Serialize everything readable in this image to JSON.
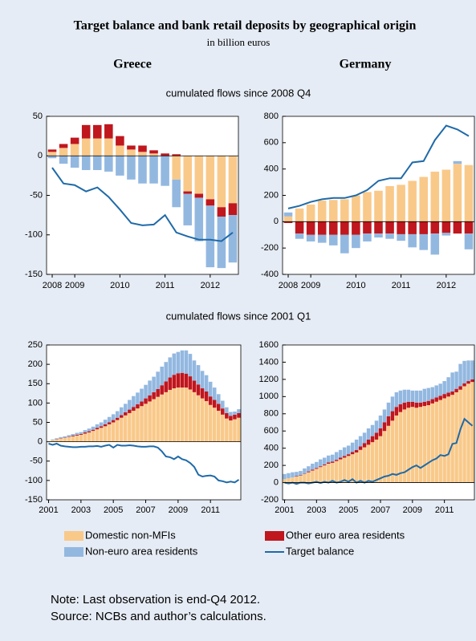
{
  "title": "Target balance and bank retail deposits by geographical origin",
  "subtitle": "in billion euros",
  "columns": [
    "Greece",
    "Germany"
  ],
  "sections": [
    "cumulated flows since 2008 Q4",
    "cumulated flows since 2001 Q1"
  ],
  "legend": [
    {
      "name": "Domestic non-MFIs",
      "color": "#f9c98a",
      "type": "bar"
    },
    {
      "name": "Other euro area residents",
      "color": "#c0161e",
      "type": "bar"
    },
    {
      "name": "Non-euro area residents",
      "color": "#93b8e0",
      "type": "bar"
    },
    {
      "name": "Target balance",
      "color": "#1f6aa8",
      "type": "line"
    }
  ],
  "notes": [
    "Note: Last observation is end-Q4 2012.",
    "Source: NCBs and author’s calculations."
  ],
  "chart_data": [
    {
      "type": "bar",
      "ylim": [
        -150,
        50
      ],
      "yticks": [
        -150,
        -100,
        -50,
        0,
        50
      ],
      "categories": [
        "2008",
        null,
        "2009",
        null,
        null,
        null,
        "2010",
        null,
        null,
        null,
        "2011",
        null,
        null,
        null,
        "2012",
        null,
        null
      ],
      "series": [
        {
          "values": [
            5,
            10,
            15,
            22,
            22,
            22,
            13,
            8,
            5,
            3,
            0,
            -30,
            -45,
            -48,
            -55,
            -65,
            -60
          ]
        },
        {
          "values": [
            3,
            5,
            8,
            17,
            17,
            18,
            12,
            5,
            8,
            4,
            3,
            2,
            -3,
            -5,
            -8,
            -12,
            -15
          ]
        },
        {
          "values": [
            -3,
            -10,
            -15,
            -18,
            -18,
            -20,
            -25,
            -30,
            -35,
            -35,
            -38,
            -35,
            -40,
            -55,
            -78,
            -65,
            -60
          ]
        },
        {
          "values": [
            -15,
            -35,
            -37,
            -45,
            -40,
            -52,
            -68,
            -85,
            -88,
            -87,
            -75,
            -97,
            -102,
            -106,
            -106,
            -108,
            -97
          ]
        }
      ]
    },
    {
      "type": "bar",
      "ylim": [
        -400,
        800
      ],
      "yticks": [
        -400,
        -200,
        0,
        200,
        400,
        600,
        800
      ],
      "categories": [
        "2008",
        null,
        "2009",
        null,
        null,
        null,
        "2010",
        null,
        null,
        null,
        "2011",
        null,
        null,
        null,
        "2012",
        null,
        null
      ],
      "series": [
        {
          "values": [
            40,
            100,
            130,
            160,
            165,
            170,
            200,
            225,
            235,
            270,
            280,
            310,
            340,
            380,
            395,
            440,
            430
          ]
        },
        {
          "values": [
            -10,
            -90,
            -100,
            -100,
            -100,
            -100,
            -100,
            -90,
            -90,
            -90,
            -95,
            -95,
            -95,
            -90,
            -85,
            -90,
            -90
          ]
        },
        {
          "values": [
            30,
            -40,
            -50,
            -60,
            -80,
            -140,
            -100,
            -60,
            -30,
            -40,
            -50,
            -100,
            -120,
            -160,
            -20,
            20,
            -120
          ]
        },
        {
          "values": [
            100,
            120,
            150,
            170,
            180,
            180,
            200,
            240,
            310,
            330,
            330,
            450,
            460,
            620,
            730,
            700,
            650
          ]
        }
      ]
    },
    {
      "type": "bar",
      "ylim": [
        -150,
        250
      ],
      "yticks": [
        -150,
        -100,
        -50,
        0,
        50,
        100,
        150,
        200,
        250
      ],
      "categories": [
        "2001",
        null,
        null,
        null,
        null,
        null,
        null,
        null,
        "2003",
        null,
        null,
        null,
        null,
        null,
        null,
        null,
        "2005",
        null,
        null,
        null,
        null,
        null,
        null,
        null,
        "2007",
        null,
        null,
        null,
        null,
        null,
        null,
        null,
        "2009",
        null,
        null,
        null,
        null,
        null,
        null,
        null,
        "2011",
        null,
        null,
        null,
        null,
        null,
        null,
        null
      ],
      "series": [
        {
          "values": [
            2,
            4,
            6,
            8,
            10,
            12,
            14,
            16,
            18,
            21,
            24,
            28,
            32,
            36,
            40,
            45,
            50,
            56,
            62,
            68,
            74,
            80,
            86,
            92,
            98,
            104,
            110,
            116,
            122,
            128,
            134,
            138,
            140,
            140,
            140,
            135,
            128,
            120,
            112,
            105,
            95,
            88,
            80,
            70,
            60,
            55,
            58,
            62
          ]
        },
        {
          "values": [
            0,
            0,
            1,
            1,
            1,
            1,
            2,
            2,
            2,
            3,
            3,
            3,
            4,
            4,
            5,
            5,
            6,
            6,
            7,
            8,
            9,
            10,
            11,
            12,
            14,
            16,
            18,
            20,
            24,
            28,
            32,
            35,
            37,
            38,
            36,
            34,
            30,
            28,
            26,
            25,
            22,
            20,
            18,
            16,
            14,
            12,
            12,
            12
          ]
        },
        {
          "values": [
            0,
            2,
            2,
            3,
            3,
            4,
            4,
            5,
            5,
            6,
            7,
            8,
            9,
            10,
            12,
            14,
            15,
            17,
            20,
            22,
            25,
            28,
            30,
            33,
            35,
            38,
            40,
            45,
            48,
            50,
            52,
            55,
            55,
            58,
            60,
            58,
            52,
            50,
            45,
            42,
            38,
            32,
            25,
            20,
            15,
            10,
            8,
            10
          ]
        },
        {
          "values": [
            -5,
            -8,
            -5,
            -10,
            -12,
            -13,
            -14,
            -14,
            -13,
            -13,
            -12,
            -12,
            -11,
            -13,
            -10,
            -8,
            -15,
            -8,
            -10,
            -10,
            -9,
            -10,
            -12,
            -13,
            -13,
            -12,
            -12,
            -15,
            -25,
            -38,
            -40,
            -45,
            -38,
            -45,
            -48,
            -55,
            -65,
            -85,
            -90,
            -88,
            -87,
            -90,
            -100,
            -102,
            -105,
            -103,
            -105,
            -98
          ]
        }
      ]
    },
    {
      "type": "bar",
      "ylim": [
        -200,
        1600
      ],
      "yticks": [
        -200,
        0,
        200,
        400,
        600,
        800,
        1000,
        1200,
        1400,
        1600
      ],
      "categories": [
        "2001",
        null,
        null,
        null,
        null,
        null,
        null,
        null,
        "2003",
        null,
        null,
        null,
        null,
        null,
        null,
        null,
        "2005",
        null,
        null,
        null,
        null,
        null,
        null,
        null,
        "2007",
        null,
        null,
        null,
        null,
        null,
        null,
        null,
        "2009",
        null,
        null,
        null,
        null,
        null,
        null,
        null,
        "2011",
        null,
        null,
        null,
        null,
        null,
        null,
        null
      ],
      "series": [
        {
          "values": [
            40,
            50,
            60,
            70,
            80,
            100,
            120,
            140,
            160,
            180,
            200,
            220,
            230,
            250,
            270,
            290,
            310,
            330,
            350,
            380,
            410,
            440,
            470,
            500,
            540,
            600,
            660,
            720,
            780,
            820,
            850,
            870,
            880,
            870,
            880,
            890,
            900,
            920,
            940,
            960,
            980,
            1000,
            1020,
            1050,
            1080,
            1120,
            1150,
            1170
          ]
        },
        {
          "values": [
            0,
            0,
            0,
            5,
            5,
            5,
            10,
            10,
            10,
            10,
            10,
            15,
            15,
            15,
            20,
            20,
            20,
            25,
            30,
            40,
            50,
            60,
            70,
            80,
            90,
            100,
            110,
            110,
            100,
            90,
            80,
            70,
            60,
            60,
            50,
            50,
            50,
            50,
            50,
            50,
            50,
            45,
            40,
            40,
            40,
            35,
            30,
            30
          ]
        },
        {
          "values": [
            60,
            60,
            60,
            50,
            50,
            60,
            60,
            70,
            70,
            80,
            80,
            80,
            80,
            90,
            90,
            100,
            100,
            110,
            120,
            120,
            120,
            130,
            130,
            140,
            150,
            150,
            160,
            170,
            170,
            160,
            150,
            140,
            130,
            140,
            140,
            150,
            150,
            140,
            140,
            140,
            150,
            180,
            220,
            200,
            260,
            260,
            240,
            220
          ]
        },
        {
          "values": [
            0,
            -10,
            0,
            -15,
            0,
            0,
            -10,
            0,
            10,
            -5,
            10,
            0,
            20,
            0,
            10,
            30,
            10,
            40,
            0,
            20,
            0,
            20,
            10,
            30,
            50,
            70,
            80,
            100,
            90,
            110,
            120,
            150,
            180,
            200,
            170,
            200,
            230,
            260,
            280,
            320,
            310,
            330,
            450,
            460,
            620,
            740,
            700,
            660
          ]
        }
      ]
    }
  ]
}
